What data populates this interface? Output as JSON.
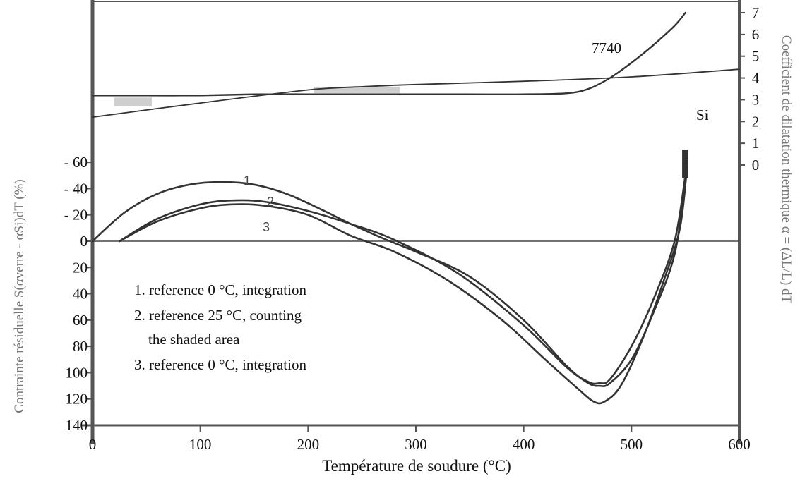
{
  "chart_data": {
    "type": "line",
    "xlabel": "Température de soudure (°C)",
    "ylabel_left": "Contrainte résiduelle S(αverre - αSi)dT   (%)",
    "ylabel_right": "Coefficient de dilatation thermique α = (ΔL/L) dT",
    "xlim": [
      0,
      600
    ],
    "ylim_left": [
      140,
      -80
    ],
    "ylim_right": [
      -2,
      7
    ],
    "x_ticks": [
      "0",
      "100",
      "200",
      "300",
      "400",
      "500",
      "600"
    ],
    "y_ticks_left": [
      "- 60",
      "- 40",
      "- 20",
      "0",
      "20",
      "40",
      "60",
      "80",
      "100",
      "120",
      "140"
    ],
    "y_ticks_right": [
      "7",
      "6",
      "5",
      "4",
      "3",
      "2",
      "1",
      "0"
    ],
    "annotations": [
      "7740",
      "Si"
    ],
    "curve_numbers": [
      "1",
      "2",
      "3"
    ],
    "legend_lines": [
      "1. reference 0 °C, integration",
      "2. reference 25 °C, counting",
      "the shaded area",
      "3. reference 0 °C, integration"
    ],
    "series": [
      {
        "name": "7740",
        "axis": "right",
        "x": [
          0,
          50,
          100,
          150,
          200,
          250,
          300,
          350,
          400,
          440,
          460,
          480,
          500,
          520,
          540,
          550
        ],
        "y": [
          3.2,
          3.2,
          3.2,
          3.25,
          3.25,
          3.25,
          3.25,
          3.25,
          3.25,
          3.3,
          3.5,
          4.0,
          4.7,
          5.5,
          6.4,
          7.0
        ]
      },
      {
        "name": "Si",
        "axis": "right",
        "x": [
          0,
          100,
          200,
          250,
          300,
          400,
          500,
          600
        ],
        "y": [
          2.2,
          2.85,
          3.45,
          3.6,
          3.7,
          3.85,
          4.05,
          4.4
        ]
      },
      {
        "name": "1",
        "axis": "left",
        "x": [
          0,
          30,
          60,
          90,
          120,
          150,
          180,
          210,
          240,
          270,
          300,
          350,
          400,
          440,
          460,
          470,
          480,
          500,
          520,
          540,
          550
        ],
        "y": [
          0,
          -22,
          -36,
          -43,
          -45,
          -43,
          -36,
          -25,
          -13,
          -2,
          8,
          27,
          60,
          95,
          108,
          110,
          108,
          90,
          55,
          10,
          -45
        ]
      },
      {
        "name": "2",
        "axis": "left",
        "x": [
          25,
          60,
          100,
          130,
          160,
          200,
          240,
          280,
          340,
          400,
          440,
          460,
          470,
          480,
          500,
          520,
          540,
          550
        ],
        "y": [
          0,
          -17,
          -28,
          -31,
          -30,
          -23,
          -13,
          -1,
          25,
          64,
          96,
          107,
          108,
          105,
          80,
          45,
          0,
          -50
        ]
      },
      {
        "name": "3",
        "axis": "left",
        "x": [
          25,
          60,
          100,
          130,
          160,
          200,
          240,
          280,
          330,
          380,
          420,
          450,
          465,
          475,
          490,
          510,
          530,
          545,
          552
        ],
        "y": [
          0,
          -15,
          -25,
          -28,
          -27,
          -20,
          -4,
          8,
          30,
          60,
          90,
          112,
          122,
          122,
          110,
          75,
          30,
          -10,
          -60
        ]
      }
    ],
    "shaded_regions": [
      {
        "x": [
          20,
          55
        ],
        "y_right": [
          2.7,
          3.1
        ]
      },
      {
        "x": [
          205,
          285
        ],
        "y_right": [
          3.3,
          3.6
        ]
      }
    ]
  },
  "colors": {
    "curve": "#333333",
    "axis": "#555555",
    "shade": "#cfcfcf",
    "gridline": "#444444"
  }
}
